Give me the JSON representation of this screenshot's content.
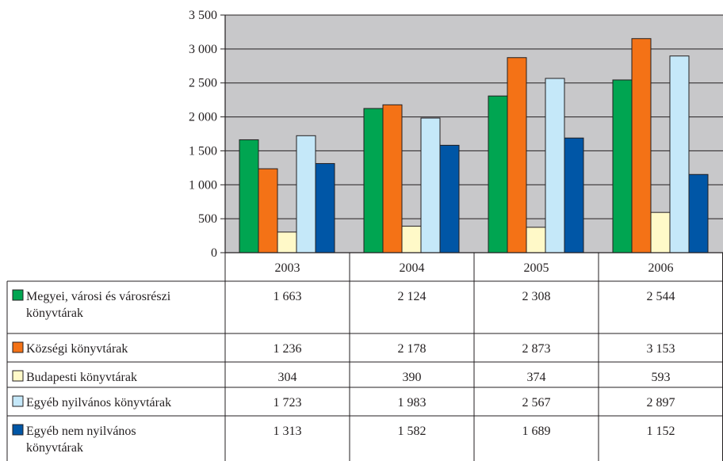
{
  "chart_data": {
    "type": "bar",
    "categories": [
      "2003",
      "2004",
      "2005",
      "2006"
    ],
    "ylim": [
      0,
      3500
    ],
    "y_ticks": [
      {
        "value": 0,
        "label": "0"
      },
      {
        "value": 500,
        "label": "500"
      },
      {
        "value": 1000,
        "label": "1 000"
      },
      {
        "value": 1500,
        "label": "1 500"
      },
      {
        "value": 2000,
        "label": "2 000"
      },
      {
        "value": 2500,
        "label": "2 500"
      },
      {
        "value": 3000,
        "label": "3 000"
      },
      {
        "value": 3500,
        "label": "3 500"
      }
    ],
    "grid": true,
    "legend": "data-table-left",
    "series": [
      {
        "name_lines": [
          "Megyei, városi és városrészi",
          "könyvtárak"
        ],
        "color": "#00a551",
        "values": [
          1663,
          2124,
          2308,
          2544
        ],
        "labels": [
          "1 663",
          "2 124",
          "2 308",
          "2 544"
        ]
      },
      {
        "name_lines": [
          "Községi könyvtárak"
        ],
        "color": "#f47216",
        "values": [
          1236,
          2178,
          2873,
          3153
        ],
        "labels": [
          "1 236",
          "2 178",
          "2 873",
          "3 153"
        ]
      },
      {
        "name_lines": [
          "Budapesti könyvtárak"
        ],
        "color": "#fff9c8",
        "values": [
          304,
          390,
          374,
          593
        ],
        "labels": [
          "304",
          "390",
          "374",
          "593"
        ]
      },
      {
        "name_lines": [
          "Egyéb nyilvános könyvtárak"
        ],
        "color": "#c5e8f9",
        "values": [
          1723,
          1983,
          2567,
          2897
        ],
        "labels": [
          "1 723",
          "1 983",
          "2 567",
          "2 897"
        ]
      },
      {
        "name_lines": [
          "Egyéb nem nyilvános",
          "könyvtárak"
        ],
        "color": "#0056a6",
        "values": [
          1313,
          1582,
          1689,
          1152
        ],
        "labels": [
          "1 313",
          "1 582",
          "1 689",
          "1 152"
        ]
      }
    ],
    "colors": {
      "plot_bg": "#c8c8ca",
      "grid": "#231f20",
      "bar_outline": "#231f20"
    }
  }
}
